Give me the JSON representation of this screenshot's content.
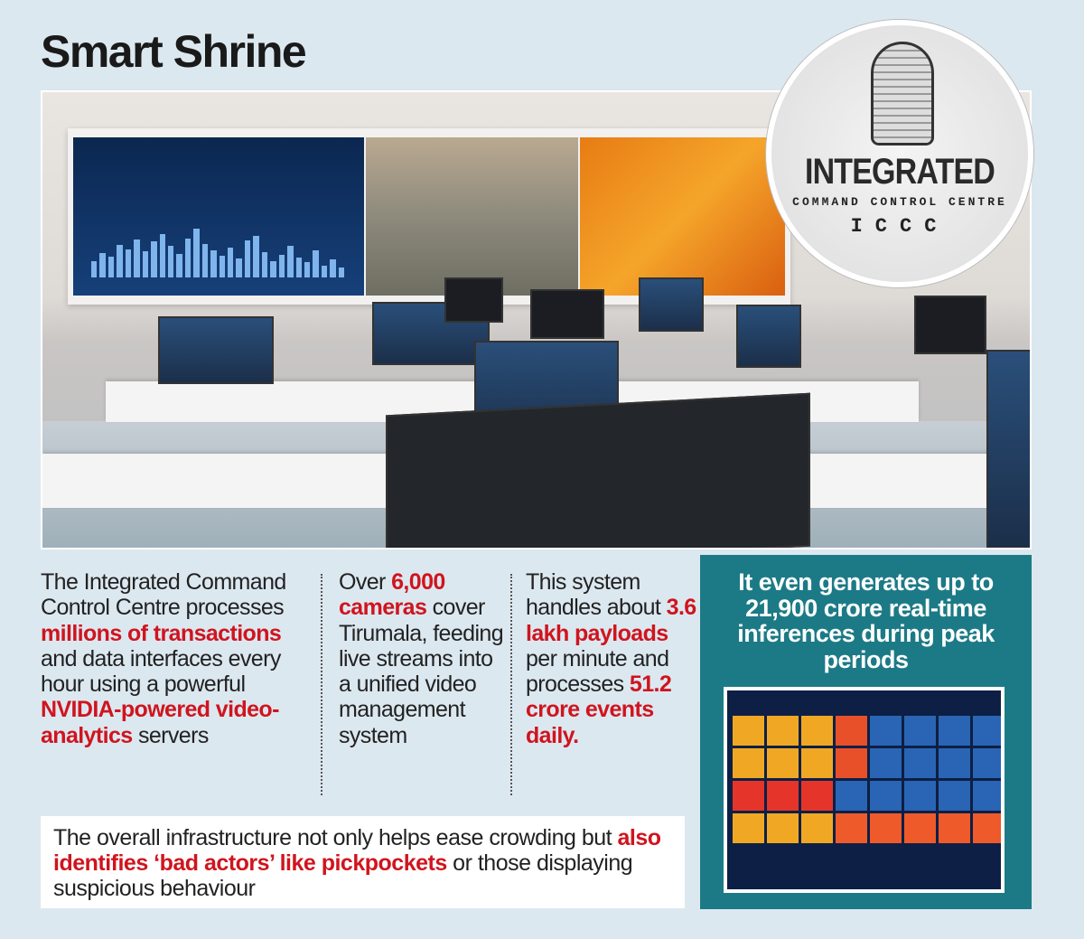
{
  "title": "Smart Shrine",
  "photo_sign": {
    "main": "INTEGRATED",
    "sub": "COMMAND CONTROL CENTRE",
    "abbr": "ICCC"
  },
  "columns": [
    {
      "parts": [
        {
          "t": "The Integrated Command Control Centre processes "
        },
        {
          "t": "millions of transactions",
          "hl": true
        },
        {
          "t": " and data interfaces every hour using a powerful "
        },
        {
          "t": "NVIDIA-powered video-analytics",
          "hl": true
        },
        {
          "t": " servers"
        }
      ]
    },
    {
      "parts": [
        {
          "t": "Over "
        },
        {
          "t": "6,000 cameras",
          "hl": true
        },
        {
          "t": " cover Tirumala, feeding live streams into a unified video management system"
        }
      ]
    },
    {
      "parts": [
        {
          "t": "This system handles about "
        },
        {
          "t": "3.6 lakh payloads",
          "hl": true
        },
        {
          "t": " per minute and processes "
        },
        {
          "t": "51.2 crore events daily.",
          "hl": true
        }
      ]
    }
  ],
  "note": {
    "parts": [
      {
        "t": "The overall infrastructure not only helps ease crowding but "
      },
      {
        "t": "also identifies ‘bad actors’ like pickpockets",
        "hl": true
      },
      {
        "t": " or those displaying suspicious behaviour"
      }
    ]
  },
  "highlight_box": {
    "text": "It even generates up to 21,900 crore real-time inferences during peak periods"
  },
  "colors": {
    "highlight": "#d0141e",
    "teal": "#1c7a86",
    "background": "#dce8f0"
  }
}
